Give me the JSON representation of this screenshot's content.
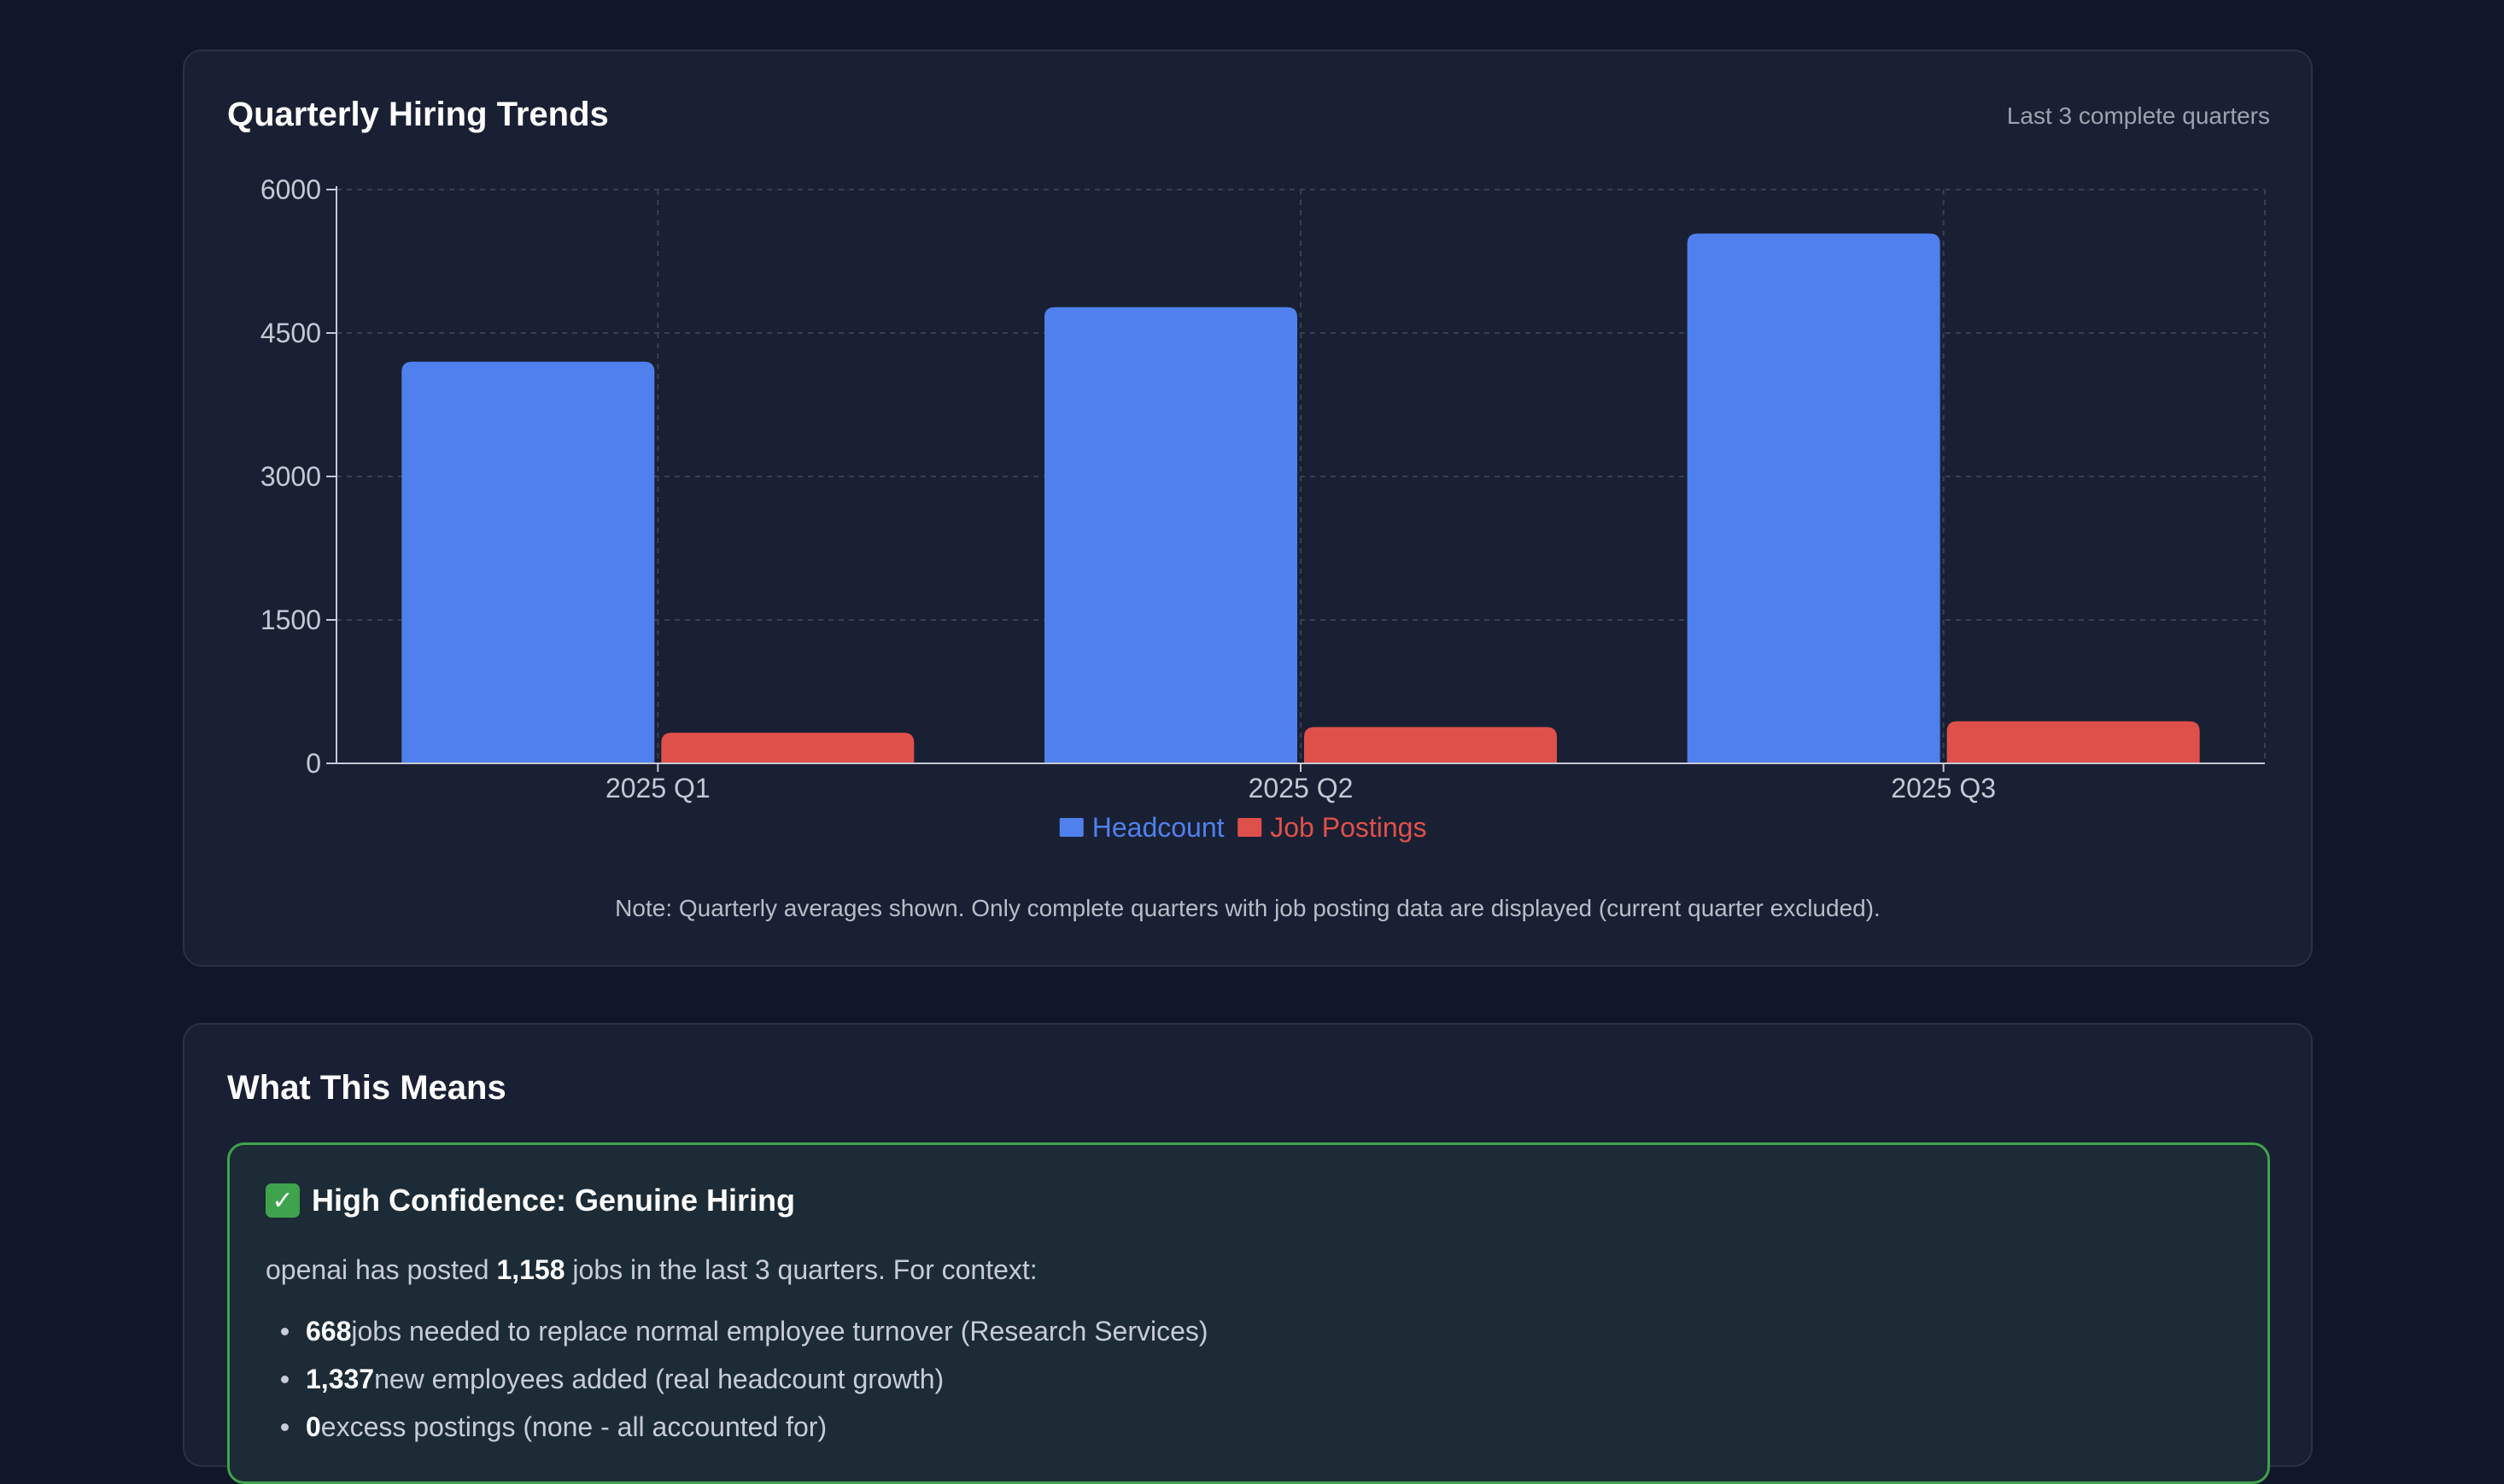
{
  "chart_card": {
    "title": "Quarterly Hiring Trends",
    "subtitle": "Last 3 complete quarters",
    "note": "Note: Quarterly averages shown. Only complete quarters with job posting data are displayed (current quarter excluded)."
  },
  "chart_data": {
    "type": "bar",
    "title": "Quarterly Hiring Trends",
    "categories": [
      "2025 Q1",
      "2025 Q2",
      "2025 Q3"
    ],
    "series": [
      {
        "name": "Headcount",
        "color": "#4f80ee",
        "values": [
          4200,
          4770,
          5540
        ]
      },
      {
        "name": "Job Postings",
        "color": "#e0504b",
        "values": [
          320,
          380,
          440
        ]
      }
    ],
    "yticks": [
      0,
      1500,
      3000,
      4500,
      6000
    ],
    "ylim": [
      0,
      6000
    ],
    "xlabel": "",
    "ylabel": "",
    "grid": true,
    "legend": "bottom-center"
  },
  "means_card": {
    "title": "What This Means",
    "confidence": {
      "heading": "High Confidence: Genuine Hiring",
      "icon": "check-mark-icon",
      "intro_pre": "openai has posted ",
      "intro_value": "1,158",
      "intro_post": " jobs in the last 3 quarters. For context:",
      "bullets": [
        {
          "value": "668",
          "text": " jobs needed to replace normal employee turnover (Research Services)"
        },
        {
          "value": "1,337",
          "text": " new employees added (real headcount growth)"
        },
        {
          "value": "0",
          "text": " excess postings (none - all accounted for)"
        }
      ]
    }
  },
  "colors": {
    "background": "#111729",
    "card": "#1a2033",
    "headcount": "#4f80ee",
    "job_postings": "#e0504b",
    "confidence_border": "#3fa34d"
  }
}
